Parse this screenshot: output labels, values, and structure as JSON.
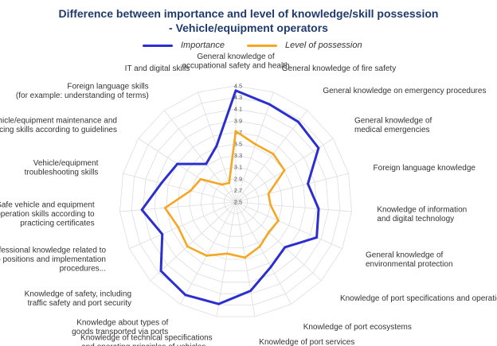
{
  "chart_data": {
    "type": "radar",
    "title_line1": "Difference between importance and level of knowledge/skill possession",
    "title_line2": "- Vehicle/equipment operators",
    "rlim": [
      2.5,
      4.5
    ],
    "ticks": [
      "2.5",
      "2.7",
      "2.9",
      "3.1",
      "3.3",
      "3.5",
      "3.7",
      "3.9",
      "4.1",
      "4.3",
      "4.5"
    ],
    "tick_values": [
      2.5,
      2.7,
      2.9,
      3.1,
      3.3,
      3.5,
      3.7,
      3.9,
      4.1,
      4.3,
      4.5
    ],
    "categories": [
      [
        "General knowledge of",
        "occupational safety and health"
      ],
      [
        "General knowledge of fire safety"
      ],
      [
        "General knowledge on emergency procedures"
      ],
      [
        "General knowledge of",
        "medical emergencies"
      ],
      [
        "Foreign language knowledge"
      ],
      [
        "Knowledge of information",
        "and digital technology"
      ],
      [
        "General knowledge of",
        "environmental protection"
      ],
      [
        "Knowledge of port specifications and operations"
      ],
      [
        "Knowledge of port ecosystems"
      ],
      [
        "Knowledge of port services"
      ],
      [
        "Knowledge of technical specifications",
        "and operating principles of vehicles..."
      ],
      [
        "Knowledge about types of",
        "goods transported via ports"
      ],
      [
        "Knowledge of safety, including",
        "traffic safety and port security"
      ],
      [
        "Professional knowledge related to",
        "job positions and implementation",
        "procedures..."
      ],
      [
        "Safe vehicle and equipment",
        "operation skills according to",
        "practicing certificates"
      ],
      [
        "Vehicle/equipment",
        "troubleshooting skills"
      ],
      [
        "Vehicle/equipment maintenance and",
        "servicing skills according to guidelines"
      ],
      [
        "Foreign language skills",
        "(for example: understanding of terms)"
      ],
      [
        "IT and digital skills"
      ]
    ],
    "series": [
      {
        "name": "Importance",
        "color": "#2b2fcf",
        "values": [
          4.42,
          4.28,
          4.25,
          4.2,
          3.78,
          3.93,
          4.02,
          3.65,
          3.77,
          4.05,
          4.28,
          4.32,
          4.25,
          3.88,
          4.12,
          3.82,
          3.7,
          3.33,
          3.52
        ]
      },
      {
        "name": "Level of possession",
        "color": "#f5a623",
        "values": [
          3.72,
          3.55,
          3.55,
          3.5,
          3.08,
          3.1,
          3.3,
          3.27,
          3.37,
          3.47,
          3.4,
          3.55,
          3.63,
          3.58,
          3.72,
          3.3,
          3.22,
          2.88,
          2.85
        ]
      }
    ]
  }
}
